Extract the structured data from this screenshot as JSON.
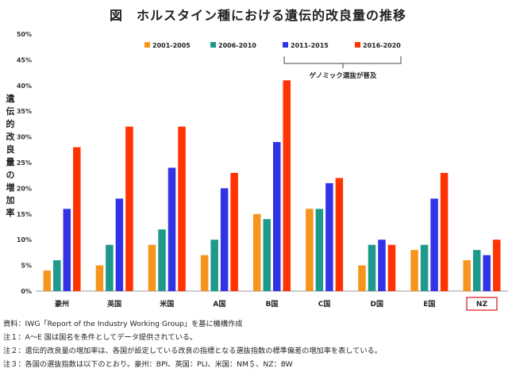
{
  "chart_data": {
    "type": "bar",
    "title": "図　ホルスタイン種における遺伝的改良量の推移",
    "ylabel": "遺伝的改良量の増加率",
    "categories": [
      "豪州",
      "英国",
      "米国",
      "A国",
      "B国",
      "C国",
      "D国",
      "E国",
      "NZ"
    ],
    "highlighted_category": "NZ",
    "ylim": [
      0,
      50
    ],
    "yticks": [
      "0%",
      "5%",
      "10%",
      "15%",
      "20%",
      "25%",
      "30%",
      "35%",
      "40%",
      "45%",
      "50%"
    ],
    "grid": false,
    "legend_position": "top-center",
    "series": [
      {
        "name": "2001-2005",
        "color": "#F7941D",
        "values": [
          4,
          5,
          9,
          7,
          15,
          16,
          5,
          8,
          6
        ]
      },
      {
        "name": "2006-2010",
        "color": "#1E9A8C",
        "values": [
          6,
          9,
          12,
          10,
          14,
          16,
          9,
          9,
          8
        ]
      },
      {
        "name": "2011-2015",
        "color": "#3333E6",
        "values": [
          16,
          18,
          24,
          20,
          29,
          21,
          10,
          18,
          7
        ]
      },
      {
        "name": "2016-2020",
        "color": "#FF3300",
        "values": [
          28,
          32,
          32,
          23,
          41,
          22,
          9,
          23,
          10
        ]
      }
    ],
    "annotation": "ゲノミック選抜が普及"
  },
  "notes": [
    "資料：IWG「Report of the Industry Working Group」を基に機構作成",
    "注１：A～E 国は国名を条件としてデータ提供されている。",
    "注２：遺伝的改良量の増加率は、各国が設定している改良の指標となる選抜指数の標準偏差の増加率を表している。",
    "注３：各国の選抜指数は以下のとおり。豪州：BPI、英国：PLI、米国：NM＄、NZ：BW"
  ]
}
